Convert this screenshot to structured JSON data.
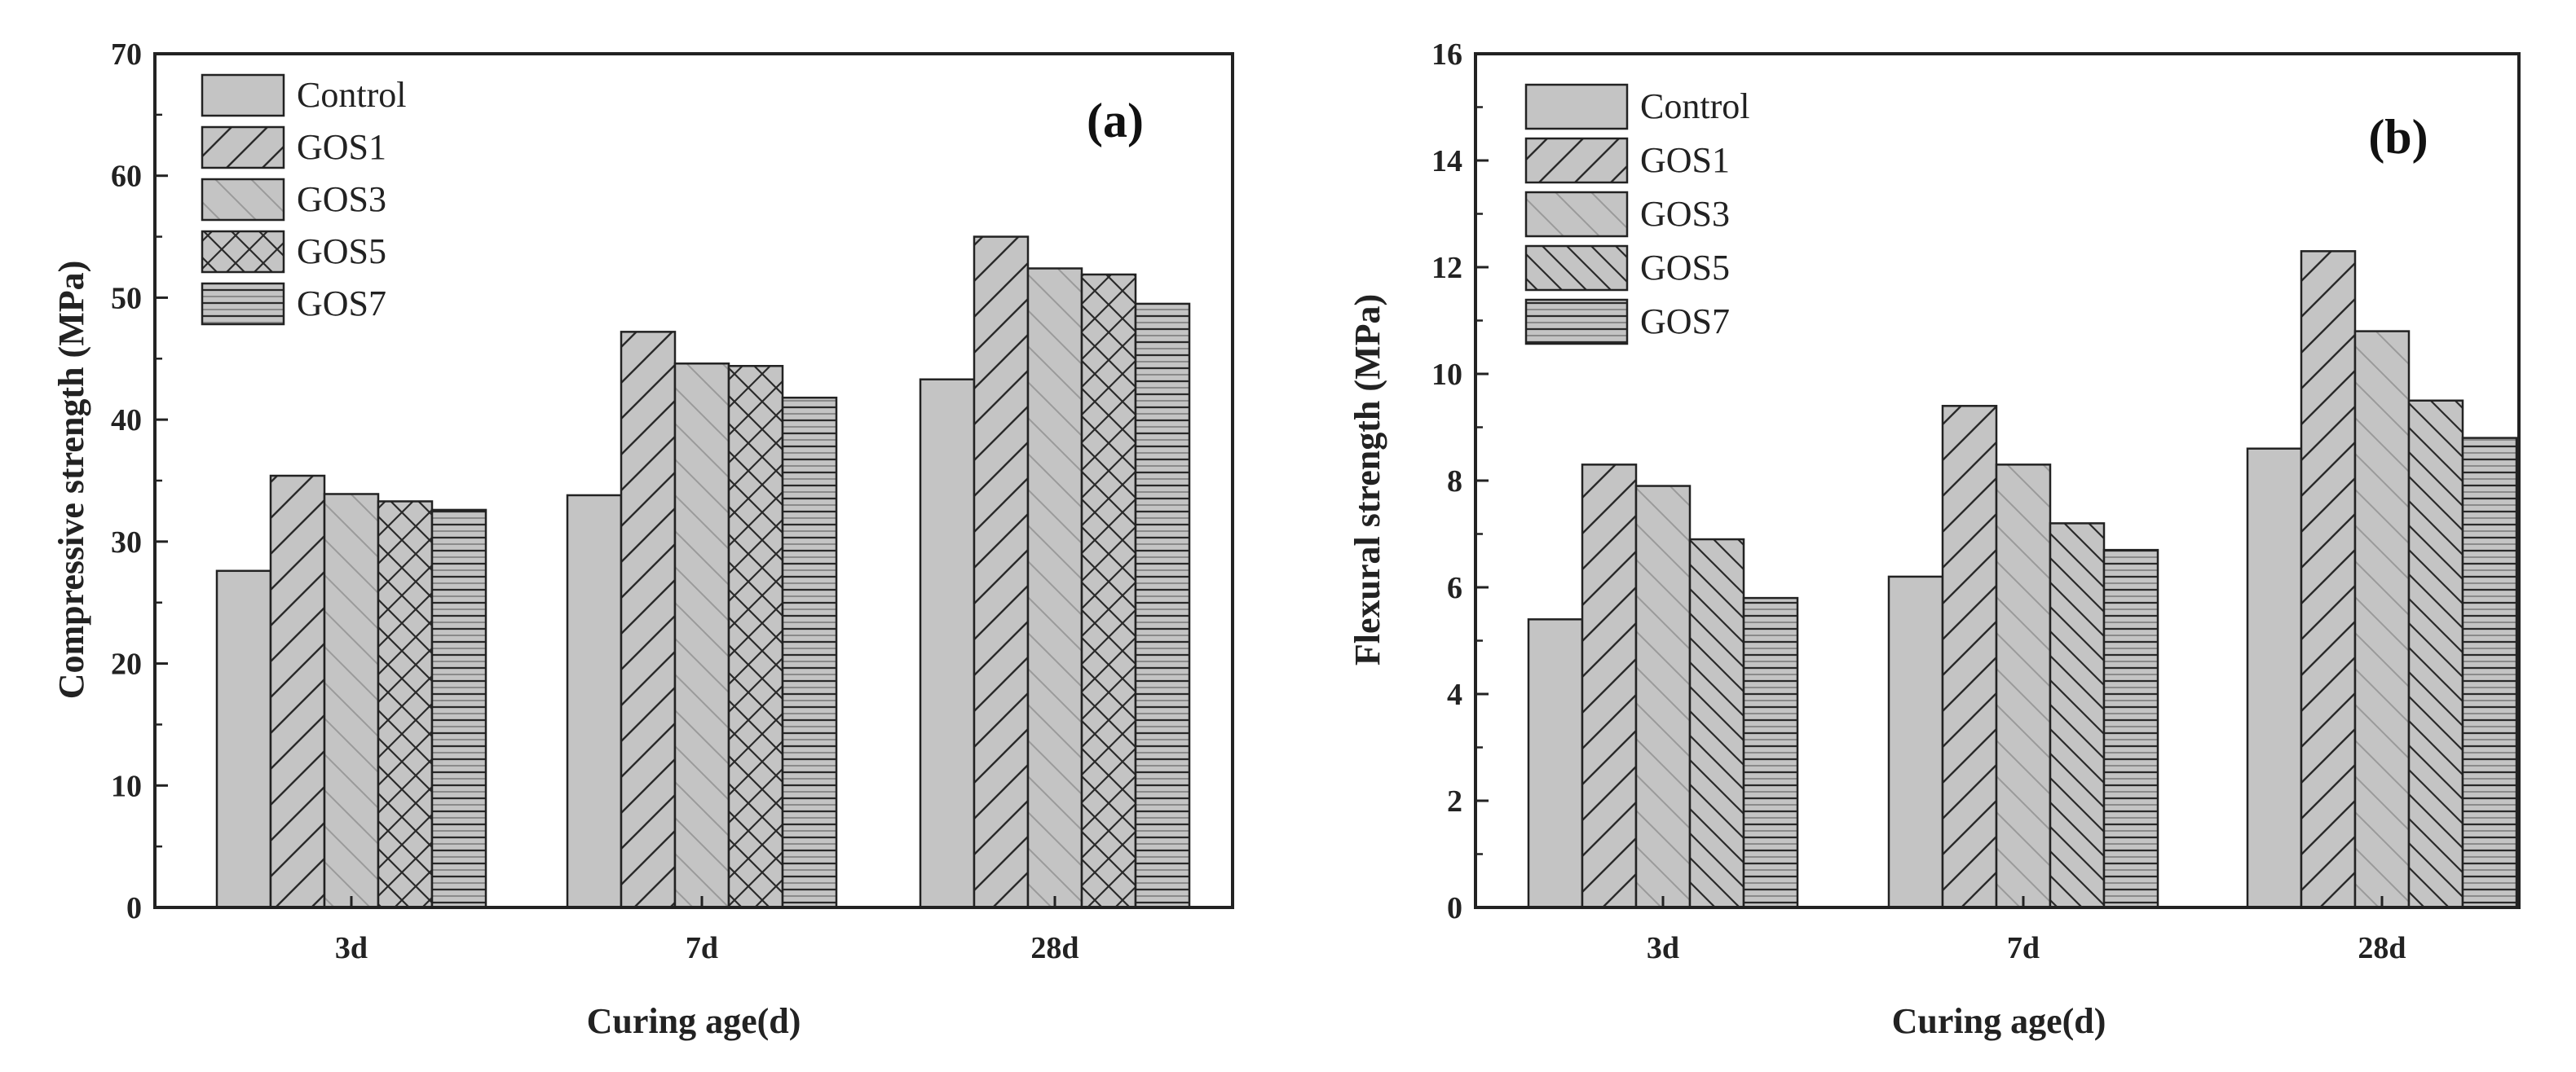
{
  "figure": {
    "background": "#ffffff",
    "bar_fill": "#c4c4c4",
    "stroke": "#222222"
  },
  "chart_data": [
    {
      "type": "bar",
      "panel_label": "(a)",
      "title": "",
      "xlabel": "Curing age(d)",
      "ylabel": "Compressive strength (MPa)",
      "categories": [
        "3d",
        "7d",
        "28d"
      ],
      "ylim": [
        0,
        70
      ],
      "yticks": [
        0,
        10,
        20,
        30,
        40,
        50,
        60,
        70
      ],
      "ytick_labels": [
        "0",
        "10",
        "20",
        "30",
        "40",
        "50",
        "60",
        "70"
      ],
      "grid": false,
      "legend_position": "top-left",
      "series": [
        {
          "name": "Control",
          "pattern": "solid",
          "values": [
            27.6,
            33.8,
            43.3
          ]
        },
        {
          "name": "GOS1",
          "pattern": "hatch-forward",
          "values": [
            35.4,
            47.2,
            55.0
          ]
        },
        {
          "name": "GOS3",
          "pattern": "hatch-backward-light",
          "values": [
            33.9,
            44.6,
            52.4
          ]
        },
        {
          "name": "GOS5",
          "pattern": "crosshatch",
          "values": [
            33.3,
            44.4,
            51.9
          ]
        },
        {
          "name": "GOS7",
          "pattern": "horizontal",
          "values": [
            32.6,
            41.8,
            49.5
          ]
        }
      ]
    },
    {
      "type": "bar",
      "panel_label": "(b)",
      "title": "",
      "xlabel": "Curing age(d)",
      "ylabel": "Flexural strength (MPa)",
      "categories": [
        "3d",
        "7d",
        "28d"
      ],
      "ylim": [
        0,
        16
      ],
      "yticks": [
        0,
        2,
        4,
        6,
        8,
        10,
        12,
        14,
        16
      ],
      "ytick_labels": [
        "0",
        "2",
        "4",
        "6",
        "8",
        "10",
        "12",
        "14",
        "16"
      ],
      "grid": false,
      "legend_position": "top-left",
      "series": [
        {
          "name": "Control",
          "pattern": "solid",
          "values": [
            5.4,
            6.2,
            8.6
          ]
        },
        {
          "name": "GOS1",
          "pattern": "hatch-forward",
          "values": [
            8.3,
            9.4,
            12.3
          ]
        },
        {
          "name": "GOS3",
          "pattern": "hatch-backward-light",
          "values": [
            7.9,
            8.3,
            10.8
          ]
        },
        {
          "name": "GOS5",
          "pattern": "hatch-dense",
          "values": [
            6.9,
            7.2,
            9.5
          ]
        },
        {
          "name": "GOS7",
          "pattern": "horizontal",
          "values": [
            5.8,
            6.7,
            8.8
          ]
        }
      ]
    }
  ]
}
